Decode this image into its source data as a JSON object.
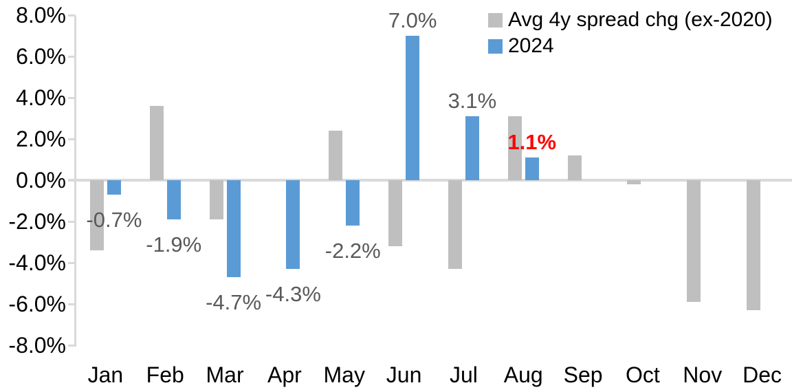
{
  "chart_data": {
    "type": "bar",
    "title": "",
    "categories": [
      "Jan",
      "Feb",
      "Mar",
      "Apr",
      "May",
      "Jun",
      "Jul",
      "Aug",
      "Sep",
      "Oct",
      "Nov",
      "Dec"
    ],
    "series": [
      {
        "name": "Avg 4y spread chg (ex-2020)",
        "color": "#BFBFBF",
        "values": [
          -3.4,
          3.6,
          -1.9,
          0.0,
          2.4,
          -3.2,
          -4.3,
          3.1,
          1.2,
          -0.2,
          -5.9,
          -6.3
        ]
      },
      {
        "name": "2024",
        "color": "#5B9BD5",
        "values": [
          -0.7,
          -1.9,
          -4.7,
          -4.3,
          -2.2,
          7.0,
          3.1,
          1.1,
          null,
          null,
          null,
          null
        ],
        "labels": [
          {
            "text": "-0.7%"
          },
          {
            "text": "-1.9%"
          },
          {
            "text": "-4.7%"
          },
          {
            "text": "-4.3%"
          },
          {
            "text": "-2.2%"
          },
          {
            "text": "7.0%"
          },
          {
            "text": "3.1%"
          },
          {
            "text": "1.1%",
            "color": "#FF0000",
            "bold": true
          },
          null,
          null,
          null,
          null
        ]
      }
    ],
    "y_axis": {
      "ticks": [
        {
          "label": "8.0%",
          "value": 8
        },
        {
          "label": "6.0%",
          "value": 6
        },
        {
          "label": "4.0%",
          "value": 4
        },
        {
          "label": "2.0%",
          "value": 2
        },
        {
          "label": "0.0%",
          "value": 0
        },
        {
          "label": "-2.0%",
          "value": -2
        },
        {
          "label": "-4.0%",
          "value": -4
        },
        {
          "label": "-6.0%",
          "value": -6
        },
        {
          "label": "-8.0%",
          "value": -8
        }
      ],
      "ylim": [
        -8,
        8
      ],
      "step": 2
    },
    "grid": false,
    "legend_position": "top-right",
    "legend": {
      "entries": [
        {
          "label": "Avg 4y spread chg (ex-2020)",
          "color": "#BFBFBF"
        },
        {
          "label": "2024",
          "color": "#5B9BD5"
        }
      ]
    },
    "colors": {
      "axis_line": "#D9D9D9",
      "axis_text": "#000000",
      "data_label": "#595959",
      "highlight": "#FF0000"
    }
  }
}
